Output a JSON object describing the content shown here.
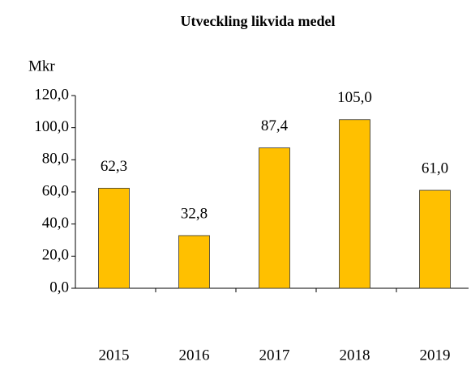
{
  "chart_data": {
    "type": "bar",
    "title": "Utveckling  likvida  medel",
    "y_axis_label": "Mkr",
    "categories": [
      "2015",
      "2016",
      "2017",
      "2018",
      "2019"
    ],
    "values": [
      62.3,
      32.8,
      87.4,
      105.0,
      61.0
    ],
    "value_labels": [
      "62,3",
      "32,8",
      "87,4",
      "105,0",
      "61,0"
    ],
    "color": "#ffc000",
    "ylim": [
      0,
      120
    ],
    "yticks": [
      {
        "value": 0,
        "label": "0,0"
      },
      {
        "value": 20,
        "label": "20,0"
      },
      {
        "value": 40,
        "label": "40,0"
      },
      {
        "value": 60,
        "label": "60,0"
      },
      {
        "value": 80,
        "label": "80,0"
      },
      {
        "value": 100,
        "label": "100,0"
      },
      {
        "value": 120,
        "label": "120,0"
      }
    ],
    "grid": false
  }
}
